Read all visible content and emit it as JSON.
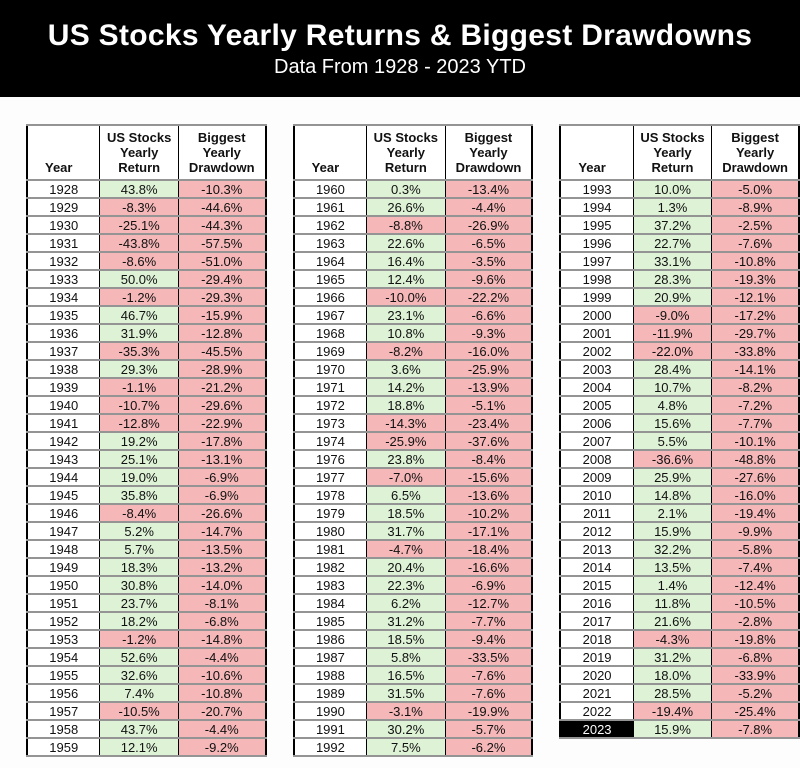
{
  "header": {
    "title": "US Stocks Yearly Returns & Biggest Drawdowns",
    "subtitle": "Data From 1928 - 2023 YTD"
  },
  "column_headers": {
    "year": "Year",
    "return": "US Stocks\nYearly\nReturn",
    "drawdown": "Biggest\nYearly\nDrawdown"
  },
  "highlight_year": "2023",
  "colors": {
    "banner_bg": "#000000",
    "banner_text": "#ffffff",
    "positive_bg": "#def2d6",
    "negative_bg": "#f5b7b8",
    "year_bg": "#ffffff",
    "highlight_year_bg": "#000000",
    "highlight_year_text": "#ffffff",
    "grid_line": "#949494",
    "table_border": "#000000"
  },
  "chart_data": {
    "type": "table",
    "title": "US Stocks Yearly Returns & Biggest Drawdowns",
    "subtitle": "Data From 1928 - 2023 YTD",
    "columns": [
      "Year",
      "US Stocks Yearly Return",
      "Biggest Yearly Drawdown"
    ],
    "legend_position": "none",
    "notes": "Positive returns shaded green, negative returns and all drawdowns shaded pink; 2023 year cell highlighted black",
    "tables": [
      {
        "rows": [
          [
            "1928",
            "43.8%",
            "-10.3%"
          ],
          [
            "1929",
            "-8.3%",
            "-44.6%"
          ],
          [
            "1930",
            "-25.1%",
            "-44.3%"
          ],
          [
            "1931",
            "-43.8%",
            "-57.5%"
          ],
          [
            "1932",
            "-8.6%",
            "-51.0%"
          ],
          [
            "1933",
            "50.0%",
            "-29.4%"
          ],
          [
            "1934",
            "-1.2%",
            "-29.3%"
          ],
          [
            "1935",
            "46.7%",
            "-15.9%"
          ],
          [
            "1936",
            "31.9%",
            "-12.8%"
          ],
          [
            "1937",
            "-35.3%",
            "-45.5%"
          ],
          [
            "1938",
            "29.3%",
            "-28.9%"
          ],
          [
            "1939",
            "-1.1%",
            "-21.2%"
          ],
          [
            "1940",
            "-10.7%",
            "-29.6%"
          ],
          [
            "1941",
            "-12.8%",
            "-22.9%"
          ],
          [
            "1942",
            "19.2%",
            "-17.8%"
          ],
          [
            "1943",
            "25.1%",
            "-13.1%"
          ],
          [
            "1944",
            "19.0%",
            "-6.9%"
          ],
          [
            "1945",
            "35.8%",
            "-6.9%"
          ],
          [
            "1946",
            "-8.4%",
            "-26.6%"
          ],
          [
            "1947",
            "5.2%",
            "-14.7%"
          ],
          [
            "1948",
            "5.7%",
            "-13.5%"
          ],
          [
            "1949",
            "18.3%",
            "-13.2%"
          ],
          [
            "1950",
            "30.8%",
            "-14.0%"
          ],
          [
            "1951",
            "23.7%",
            "-8.1%"
          ],
          [
            "1952",
            "18.2%",
            "-6.8%"
          ],
          [
            "1953",
            "-1.2%",
            "-14.8%"
          ],
          [
            "1954",
            "52.6%",
            "-4.4%"
          ],
          [
            "1955",
            "32.6%",
            "-10.6%"
          ],
          [
            "1956",
            "7.4%",
            "-10.8%"
          ],
          [
            "1957",
            "-10.5%",
            "-20.7%"
          ],
          [
            "1958",
            "43.7%",
            "-4.4%"
          ],
          [
            "1959",
            "12.1%",
            "-9.2%"
          ]
        ]
      },
      {
        "rows": [
          [
            "1960",
            "0.3%",
            "-13.4%"
          ],
          [
            "1961",
            "26.6%",
            "-4.4%"
          ],
          [
            "1962",
            "-8.8%",
            "-26.9%"
          ],
          [
            "1963",
            "22.6%",
            "-6.5%"
          ],
          [
            "1964",
            "16.4%",
            "-3.5%"
          ],
          [
            "1965",
            "12.4%",
            "-9.6%"
          ],
          [
            "1966",
            "-10.0%",
            "-22.2%"
          ],
          [
            "1967",
            "23.1%",
            "-6.6%"
          ],
          [
            "1968",
            "10.8%",
            "-9.3%"
          ],
          [
            "1969",
            "-8.2%",
            "-16.0%"
          ],
          [
            "1970",
            "3.6%",
            "-25.9%"
          ],
          [
            "1971",
            "14.2%",
            "-13.9%"
          ],
          [
            "1972",
            "18.8%",
            "-5.1%"
          ],
          [
            "1973",
            "-14.3%",
            "-23.4%"
          ],
          [
            "1974",
            "-25.9%",
            "-37.6%"
          ],
          [
            "1976",
            "23.8%",
            "-8.4%"
          ],
          [
            "1977",
            "-7.0%",
            "-15.6%"
          ],
          [
            "1978",
            "6.5%",
            "-13.6%"
          ],
          [
            "1979",
            "18.5%",
            "-10.2%"
          ],
          [
            "1980",
            "31.7%",
            "-17.1%"
          ],
          [
            "1981",
            "-4.7%",
            "-18.4%"
          ],
          [
            "1982",
            "20.4%",
            "-16.6%"
          ],
          [
            "1983",
            "22.3%",
            "-6.9%"
          ],
          [
            "1984",
            "6.2%",
            "-12.7%"
          ],
          [
            "1985",
            "31.2%",
            "-7.7%"
          ],
          [
            "1986",
            "18.5%",
            "-9.4%"
          ],
          [
            "1987",
            "5.8%",
            "-33.5%"
          ],
          [
            "1988",
            "16.5%",
            "-7.6%"
          ],
          [
            "1989",
            "31.5%",
            "-7.6%"
          ],
          [
            "1990",
            "-3.1%",
            "-19.9%"
          ],
          [
            "1991",
            "30.2%",
            "-5.7%"
          ],
          [
            "1992",
            "7.5%",
            "-6.2%"
          ]
        ]
      },
      {
        "rows": [
          [
            "1993",
            "10.0%",
            "-5.0%"
          ],
          [
            "1994",
            "1.3%",
            "-8.9%"
          ],
          [
            "1995",
            "37.2%",
            "-2.5%"
          ],
          [
            "1996",
            "22.7%",
            "-7.6%"
          ],
          [
            "1997",
            "33.1%",
            "-10.8%"
          ],
          [
            "1998",
            "28.3%",
            "-19.3%"
          ],
          [
            "1999",
            "20.9%",
            "-12.1%"
          ],
          [
            "2000",
            "-9.0%",
            "-17.2%"
          ],
          [
            "2001",
            "-11.9%",
            "-29.7%"
          ],
          [
            "2002",
            "-22.0%",
            "-33.8%"
          ],
          [
            "2003",
            "28.4%",
            "-14.1%"
          ],
          [
            "2004",
            "10.7%",
            "-8.2%"
          ],
          [
            "2005",
            "4.8%",
            "-7.2%"
          ],
          [
            "2006",
            "15.6%",
            "-7.7%"
          ],
          [
            "2007",
            "5.5%",
            "-10.1%"
          ],
          [
            "2008",
            "-36.6%",
            "-48.8%"
          ],
          [
            "2009",
            "25.9%",
            "-27.6%"
          ],
          [
            "2010",
            "14.8%",
            "-16.0%"
          ],
          [
            "2011",
            "2.1%",
            "-19.4%"
          ],
          [
            "2012",
            "15.9%",
            "-9.9%"
          ],
          [
            "2013",
            "32.2%",
            "-5.8%"
          ],
          [
            "2014",
            "13.5%",
            "-7.4%"
          ],
          [
            "2015",
            "1.4%",
            "-12.4%"
          ],
          [
            "2016",
            "11.8%",
            "-10.5%"
          ],
          [
            "2017",
            "21.6%",
            "-2.8%"
          ],
          [
            "2018",
            "-4.3%",
            "-19.8%"
          ],
          [
            "2019",
            "31.2%",
            "-6.8%"
          ],
          [
            "2020",
            "18.0%",
            "-33.9%"
          ],
          [
            "2021",
            "28.5%",
            "-5.2%"
          ],
          [
            "2022",
            "-19.4%",
            "-25.4%"
          ],
          [
            "2023",
            "15.9%",
            "-7.8%"
          ]
        ]
      }
    ]
  }
}
